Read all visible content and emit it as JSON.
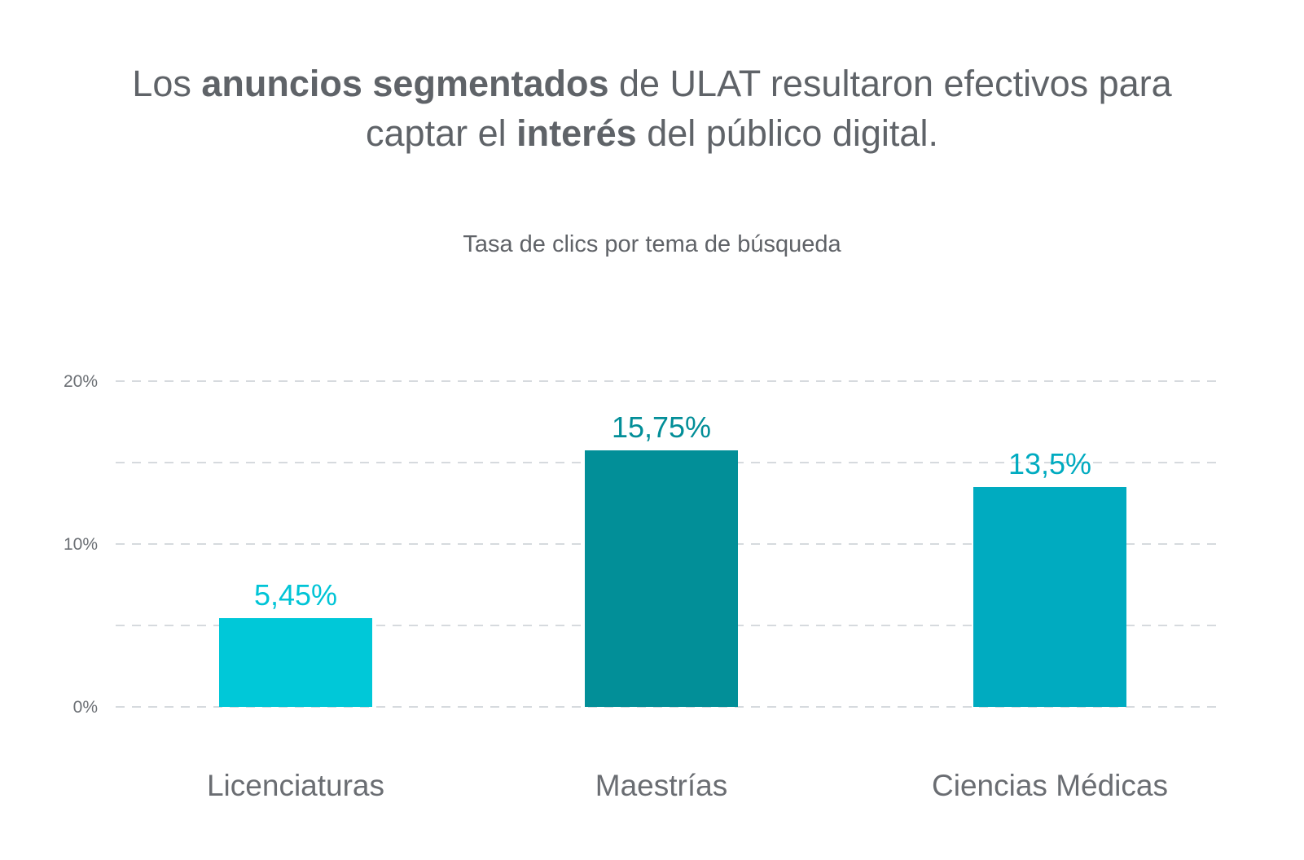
{
  "headline": {
    "line1": [
      {
        "text": "Los ",
        "bold": false
      },
      {
        "text": "anuncios segmentados",
        "bold": true
      },
      {
        "text": " de ULAT resultaron efectivos para",
        "bold": false
      }
    ],
    "line2": [
      {
        "text": "captar el ",
        "bold": false
      },
      {
        "text": "interés",
        "bold": true
      },
      {
        "text": " del público digital.",
        "bold": false
      }
    ]
  },
  "chart_data": {
    "type": "bar",
    "title": "Tasa de clics por tema de búsqueda",
    "categories": [
      "Licenciaturas",
      "Maestrías",
      "Ciencias Médicas"
    ],
    "values": [
      5.45,
      15.75,
      13.5
    ],
    "value_labels": [
      "5,45%",
      "15,75%",
      "13,5%"
    ],
    "bar_colors": [
      "#00c8d8",
      "#028f98",
      "#00abc0"
    ],
    "label_colors": [
      "#00c4d6",
      "#028e98",
      "#00abc0"
    ],
    "ylim": [
      0,
      20
    ],
    "y_ticks": [
      {
        "value": 0,
        "label": "0%"
      },
      {
        "value": 10,
        "label": "10%"
      },
      {
        "value": 20,
        "label": "20%"
      }
    ],
    "gridlines": [
      0,
      5,
      10,
      15,
      20
    ],
    "grid": true,
    "grid_style": "dashed",
    "legend": false,
    "xlabel": "",
    "ylabel": ""
  }
}
